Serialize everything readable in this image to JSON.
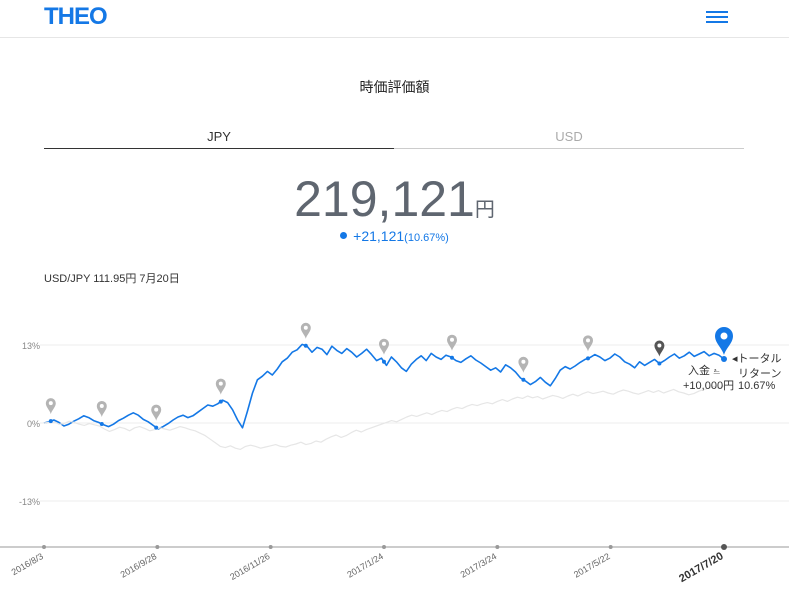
{
  "header": {
    "logo": "THEO",
    "menu_icon": "hamburger-menu-icon"
  },
  "page_title": "時価評価額",
  "tabs": [
    {
      "label": "JPY",
      "active": true
    },
    {
      "label": "USD",
      "active": false
    }
  ],
  "valuation": {
    "amount": "219,121",
    "currency": "円",
    "change": "+21,121",
    "change_pct": "(10.67%)"
  },
  "exchange_rate": "USD/JPY 111.95円 7月20日",
  "colors": {
    "accent": "#1478e6",
    "benchmark": "#e6e6e6",
    "pin": "#b4b4b4",
    "text": "#5f6670"
  },
  "chart_data": {
    "type": "line",
    "y_ticks": [
      "13%",
      "0%",
      "-13%"
    ],
    "ylim": [
      -13,
      13
    ],
    "x_tick_labels": [
      "2016/8/3",
      "2016/9/28",
      "2016/11/26",
      "2017/1/24",
      "2017/3/24",
      "2017/5/22",
      "2017/7/20"
    ],
    "series": [
      {
        "style": "primary",
        "values": [
          0,
          0.2,
          0.5,
          0.1,
          -0.5,
          -0.2,
          0.3,
          0.7,
          1.2,
          0.9,
          0.4,
          0.1,
          -0.3,
          -0.6,
          -0.2,
          0.4,
          0.8,
          1.3,
          1.7,
          1.3,
          0.6,
          0.2,
          -0.4,
          -1.0,
          -0.6,
          -0.1,
          0.5,
          1.0,
          1.3,
          0.9,
          1.2,
          1.8,
          2.4,
          3.0,
          2.8,
          3.2,
          3.8,
          3.4,
          2.2,
          0.5,
          -0.8,
          2.0,
          5.0,
          7.2,
          7.8,
          8.6,
          8.0,
          9.0,
          10.2,
          10.8,
          11.8,
          12.2,
          13.1,
          12.8,
          11.8,
          12.6,
          12.3,
          11.4,
          12.8,
          12.1,
          11.6,
          12.4,
          11.8,
          11.0,
          11.6,
          12.3,
          11.4,
          10.4,
          10.8,
          9.6,
          11.0,
          10.2,
          9.2,
          8.6,
          9.8,
          10.6,
          11.2,
          10.4,
          11.6,
          11.0,
          10.6,
          11.3,
          11.0,
          10.4,
          10.1,
          10.7,
          11.2,
          10.5,
          10.0,
          9.4,
          8.8,
          9.2,
          8.5,
          9.7,
          9.2,
          8.5,
          7.5,
          7.0,
          6.4,
          6.9,
          7.6,
          6.8,
          6.2,
          7.4,
          8.8,
          9.4,
          9.0,
          9.5,
          10.1,
          10.6,
          10.9,
          11.4,
          11.0,
          10.4,
          10.8,
          11.5,
          11.0,
          10.2,
          9.8,
          9.2,
          10.2,
          9.6,
          10.1,
          10.6,
          9.9,
          10.4,
          11.0,
          11.5,
          10.8,
          11.2,
          11.8,
          11.1,
          11.5,
          11.9,
          11.2,
          11.6,
          11.3,
          10.67
        ]
      },
      {
        "style": "benchmark",
        "values": [
          0,
          0.1,
          0.2,
          -0.2,
          -0.1,
          0.3,
          0.1,
          -0.2,
          -0.4,
          -0.1,
          -0.3,
          -0.5,
          -1.0,
          -1.4,
          -1.1,
          -0.7,
          -0.9,
          -1.3,
          -0.8,
          -0.6,
          -0.9,
          -1.3,
          -1.1,
          -0.8,
          -1.0,
          -1.2,
          -0.9,
          -0.6,
          -0.8,
          -1.1,
          -1.3,
          -1.7,
          -2.1,
          -2.7,
          -3.3,
          -3.9,
          -4.1,
          -3.8,
          -4.2,
          -4.4,
          -3.9,
          -3.7,
          -3.9,
          -4.2,
          -4.0,
          -3.8,
          -3.6,
          -3.9,
          -4.0,
          -3.7,
          -3.5,
          -3.2,
          -3.6,
          -3.4,
          -3.0,
          -3.2,
          -2.7,
          -2.3,
          -2.0,
          -2.4,
          -2.1,
          -1.6,
          -1.2,
          -1.5,
          -1.1,
          -0.8,
          -0.5,
          -0.2,
          0.1,
          0.4,
          0.2,
          0.6,
          1.0,
          1.3,
          1.1,
          1.4,
          1.7,
          1.4,
          1.8,
          2.1,
          1.9,
          2.3,
          2.6,
          2.4,
          2.8,
          3.1,
          2.9,
          3.2,
          3.4,
          3.2,
          3.6,
          3.9,
          3.6,
          4.0,
          4.3,
          4.1,
          4.5,
          4.2,
          4.4,
          4.0,
          4.3,
          4.6,
          4.4,
          4.1,
          4.5,
          4.8,
          4.5,
          4.9,
          5.2,
          4.9,
          5.1,
          5.3,
          5.0,
          4.8,
          5.2,
          5.5,
          5.3,
          5.0,
          4.8,
          5.1,
          5.4,
          5.1,
          5.4,
          5.0,
          5.3,
          5.6,
          5.2,
          5.0,
          4.7,
          4.9,
          5.3,
          5.6,
          5.8,
          6.1,
          5.8,
          6.2
        ]
      }
    ],
    "pins": [
      0.01,
      0.085,
      0.165,
      0.26,
      0.385,
      0.5,
      0.6,
      0.705,
      0.8,
      0.905
    ],
    "deposit_label": "入金",
    "deposit_amount": "+10,000円",
    "total_return_label_1": "◂トータル",
    "total_return_label_2": "リターン",
    "total_return_value": "10.67%"
  }
}
